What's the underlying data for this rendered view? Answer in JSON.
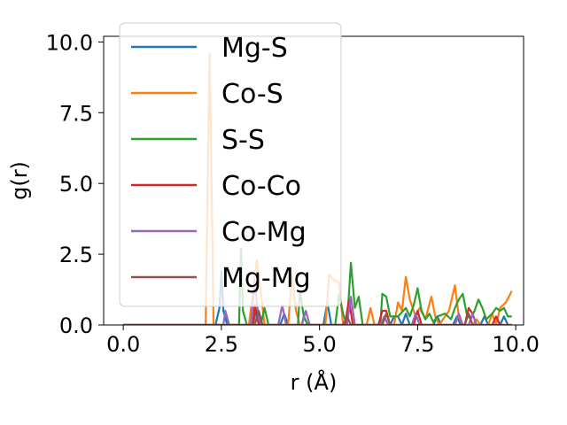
{
  "chart_data": {
    "type": "line",
    "title": "",
    "xlabel": "r (Å)",
    "ylabel": "g(r)",
    "xlim": [
      -0.5,
      10.2
    ],
    "ylim": [
      0,
      10.2
    ],
    "xticks": [
      0.0,
      2.5,
      5.0,
      7.5,
      10.0
    ],
    "xtick_labels": [
      "0.0",
      "2.5",
      "5.0",
      "7.5",
      "10.0"
    ],
    "yticks": [
      0.0,
      2.5,
      5.0,
      7.5,
      10.0
    ],
    "ytick_labels": [
      "0.0",
      "2.5",
      "5.0",
      "7.5",
      "10.0"
    ],
    "grid": false,
    "legend_position": "upper-left",
    "series": [
      {
        "name": "Mg-S",
        "color": "#1f77b4",
        "points": [
          [
            0,
            0
          ],
          [
            2.35,
            0
          ],
          [
            2.45,
            0.6
          ],
          [
            2.5,
            1.9
          ],
          [
            2.55,
            0.5
          ],
          [
            2.65,
            0
          ],
          [
            3.3,
            0
          ],
          [
            3.4,
            0.6
          ],
          [
            3.5,
            0
          ],
          [
            4.0,
            0
          ],
          [
            4.1,
            0.4
          ],
          [
            4.2,
            0
          ],
          [
            4.55,
            0
          ],
          [
            4.6,
            0.3
          ],
          [
            4.7,
            0
          ],
          [
            5.1,
            0
          ],
          [
            5.2,
            0.8
          ],
          [
            5.3,
            0
          ],
          [
            6.8,
            0
          ],
          [
            6.9,
            0.3
          ],
          [
            7.0,
            0.3
          ],
          [
            7.1,
            0
          ],
          [
            7.2,
            0.4
          ],
          [
            7.3,
            0
          ],
          [
            7.9,
            0
          ],
          [
            8.0,
            0.3
          ],
          [
            8.1,
            0
          ],
          [
            8.4,
            0
          ],
          [
            8.5,
            0.3
          ],
          [
            8.6,
            0
          ],
          [
            9.1,
            0
          ],
          [
            9.2,
            0.3
          ],
          [
            9.3,
            0
          ],
          [
            9.6,
            0
          ],
          [
            9.7,
            0.3
          ],
          [
            9.8,
            0
          ],
          [
            9.9,
            0
          ]
        ]
      },
      {
        "name": "Co-S",
        "color": "#ff7f0e",
        "points": [
          [
            0,
            0
          ],
          [
            2.1,
            0
          ],
          [
            2.15,
            5
          ],
          [
            2.2,
            9.6
          ],
          [
            2.25,
            5
          ],
          [
            2.3,
            0
          ],
          [
            3.2,
            0
          ],
          [
            3.3,
            1.1
          ],
          [
            3.4,
            2.3
          ],
          [
            3.5,
            1.2
          ],
          [
            3.6,
            0
          ],
          [
            4.2,
            0
          ],
          [
            4.3,
            1.8
          ],
          [
            4.4,
            0.5
          ],
          [
            4.5,
            0
          ],
          [
            5.15,
            0
          ],
          [
            5.25,
            1.8
          ],
          [
            5.35,
            1.6
          ],
          [
            5.5,
            1.5
          ],
          [
            5.6,
            0
          ],
          [
            6.2,
            0
          ],
          [
            6.3,
            0.6
          ],
          [
            6.4,
            0
          ],
          [
            6.9,
            0
          ],
          [
            7.0,
            0.8
          ],
          [
            7.1,
            0.5
          ],
          [
            7.2,
            1.7
          ],
          [
            7.3,
            0.9
          ],
          [
            7.45,
            0.3
          ],
          [
            7.55,
            0.6
          ],
          [
            7.7,
            0.2
          ],
          [
            7.85,
            1.0
          ],
          [
            7.95,
            0.3
          ],
          [
            8.05,
            0
          ],
          [
            8.3,
            0.5
          ],
          [
            8.45,
            1.4
          ],
          [
            8.55,
            0.3
          ],
          [
            8.65,
            0
          ],
          [
            8.9,
            0
          ],
          [
            9.0,
            0.2
          ],
          [
            9.1,
            0
          ],
          [
            9.3,
            0
          ],
          [
            9.4,
            0.4
          ],
          [
            9.5,
            0
          ],
          [
            9.6,
            0.6
          ],
          [
            9.75,
            0.8
          ],
          [
            9.9,
            1.2
          ]
        ]
      },
      {
        "name": "S-S",
        "color": "#2ca02c",
        "points": [
          [
            0,
            0
          ],
          [
            2.95,
            0
          ],
          [
            3.0,
            2.7
          ],
          [
            3.05,
            0.5
          ],
          [
            3.15,
            0
          ],
          [
            3.5,
            0
          ],
          [
            3.6,
            0.6
          ],
          [
            3.7,
            0
          ],
          [
            4.45,
            0
          ],
          [
            4.5,
            1.2
          ],
          [
            4.6,
            0.3
          ],
          [
            4.7,
            0
          ],
          [
            5.4,
            0
          ],
          [
            5.5,
            1.1
          ],
          [
            5.6,
            0.4
          ],
          [
            5.7,
            0
          ],
          [
            5.8,
            2.2
          ],
          [
            5.9,
            0.6
          ],
          [
            6.0,
            1.0
          ],
          [
            6.1,
            0
          ],
          [
            6.55,
            0
          ],
          [
            6.6,
            1.1
          ],
          [
            6.7,
            1.0
          ],
          [
            6.8,
            0.3
          ],
          [
            6.9,
            0.3
          ],
          [
            7.0,
            0.3
          ],
          [
            7.2,
            0.6
          ],
          [
            7.3,
            0.3
          ],
          [
            7.4,
            0.7
          ],
          [
            7.5,
            1.3
          ],
          [
            7.6,
            0.5
          ],
          [
            7.7,
            0.2
          ],
          [
            7.8,
            0.4
          ],
          [
            7.9,
            0.1
          ],
          [
            8.0,
            0.3
          ],
          [
            8.2,
            0.4
          ],
          [
            8.35,
            0.2
          ],
          [
            8.45,
            0.6
          ],
          [
            8.55,
            0.9
          ],
          [
            8.65,
            1.1
          ],
          [
            8.75,
            0.4
          ],
          [
            8.85,
            0.2
          ],
          [
            8.95,
            0.5
          ],
          [
            9.05,
            0.9
          ],
          [
            9.15,
            0.6
          ],
          [
            9.25,
            0.2
          ],
          [
            9.4,
            0.4
          ],
          [
            9.5,
            0.6
          ],
          [
            9.6,
            0.5
          ],
          [
            9.7,
            0.6
          ],
          [
            9.8,
            0.3
          ],
          [
            9.9,
            0.3
          ]
        ]
      },
      {
        "name": "Co-Co",
        "color": "#d62728",
        "points": [
          [
            0,
            0
          ],
          [
            3.3,
            0
          ],
          [
            3.35,
            0.7
          ],
          [
            3.45,
            0
          ],
          [
            5.65,
            0
          ],
          [
            5.75,
            0.9
          ],
          [
            5.85,
            0
          ],
          [
            6.5,
            0
          ],
          [
            6.6,
            0.5
          ],
          [
            6.7,
            0.5
          ],
          [
            6.8,
            0
          ],
          [
            7.4,
            0
          ],
          [
            7.5,
            0.5
          ],
          [
            7.6,
            0
          ],
          [
            8.7,
            0
          ],
          [
            8.8,
            0.6
          ],
          [
            8.9,
            0.4
          ],
          [
            9.0,
            0
          ],
          [
            9.4,
            0
          ],
          [
            9.5,
            0.3
          ],
          [
            9.6,
            0
          ]
        ]
      },
      {
        "name": "Co-Mg",
        "color": "#9467bd",
        "points": [
          [
            0,
            0
          ],
          [
            2.55,
            0
          ],
          [
            2.6,
            0.5
          ],
          [
            2.7,
            0
          ],
          [
            3.25,
            0
          ],
          [
            3.35,
            1.5
          ],
          [
            3.45,
            0.2
          ],
          [
            3.55,
            0
          ],
          [
            3.95,
            0
          ],
          [
            4.05,
            0.7
          ],
          [
            4.15,
            0
          ],
          [
            4.55,
            0
          ],
          [
            4.65,
            0.5
          ],
          [
            4.75,
            0
          ],
          [
            5.7,
            0
          ],
          [
            5.8,
            1.0
          ],
          [
            5.9,
            0
          ],
          [
            6.55,
            0
          ],
          [
            6.65,
            0.3
          ],
          [
            6.75,
            0
          ],
          [
            7.35,
            0
          ],
          [
            7.45,
            0.4
          ],
          [
            7.55,
            0
          ],
          [
            8.45,
            0
          ],
          [
            8.55,
            0.4
          ],
          [
            8.65,
            0
          ],
          [
            8.8,
            0
          ],
          [
            8.9,
            0.4
          ],
          [
            9.0,
            0
          ]
        ]
      },
      {
        "name": "Mg-Mg",
        "color": "#8c564b",
        "points": [
          [
            0,
            0
          ],
          [
            3.35,
            0
          ],
          [
            3.45,
            0.5
          ],
          [
            3.55,
            0
          ],
          [
            5.6,
            0
          ],
          [
            5.7,
            0.3
          ],
          [
            5.8,
            0
          ],
          [
            6.6,
            0
          ],
          [
            6.7,
            0.4
          ],
          [
            6.8,
            0
          ],
          [
            8.7,
            0
          ],
          [
            8.8,
            0.4
          ],
          [
            8.9,
            0
          ],
          [
            9.9,
            0
          ]
        ]
      }
    ]
  }
}
